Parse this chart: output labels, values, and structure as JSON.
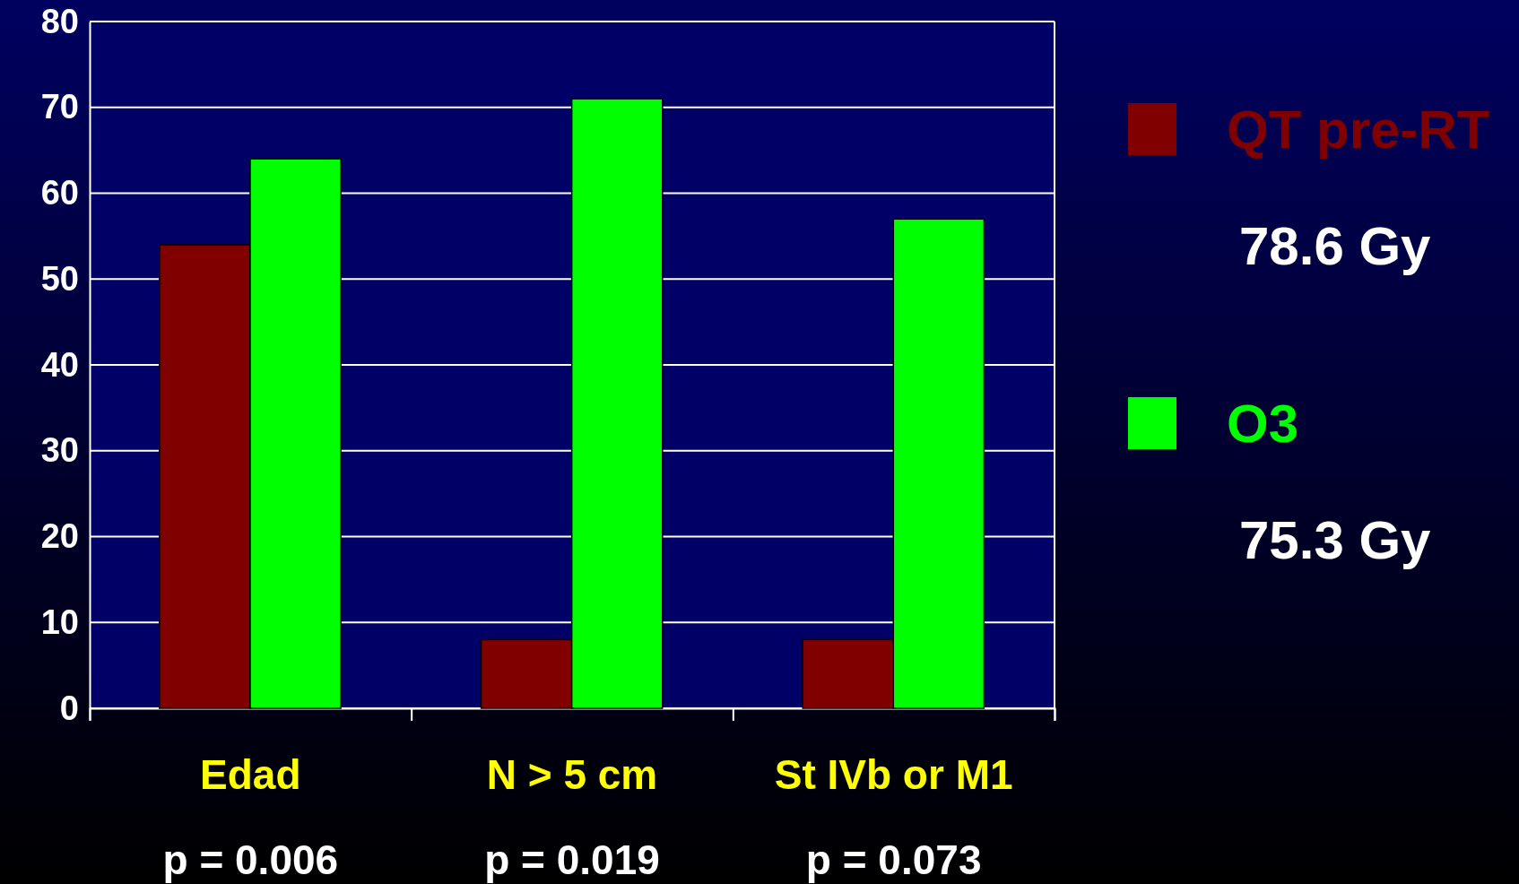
{
  "chart_data": {
    "type": "bar",
    "categories": [
      "Edad",
      "N > 5 cm",
      "St IVb or M1"
    ],
    "series": [
      {
        "name": "QT pre-RT",
        "color": "#800000",
        "values": [
          54,
          8,
          8
        ]
      },
      {
        "name": "O3",
        "color": "#00ff00",
        "values": [
          64,
          71,
          57
        ]
      }
    ],
    "ylim": [
      0,
      80
    ],
    "yticks": [
      0,
      10,
      20,
      30,
      40,
      50,
      60,
      70,
      80
    ],
    "grid": "y",
    "legend": "right",
    "annotations": [
      "p = 0.006",
      "p = 0.019",
      "p = 0.073",
      "78.6 Gy",
      "75.3 Gy"
    ]
  }
}
